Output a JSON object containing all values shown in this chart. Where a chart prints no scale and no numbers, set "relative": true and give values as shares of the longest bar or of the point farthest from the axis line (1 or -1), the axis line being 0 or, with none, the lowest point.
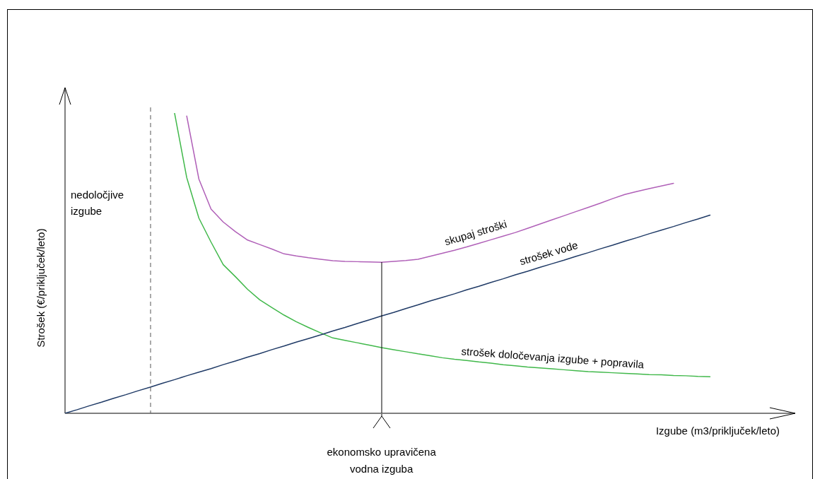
{
  "chart_data": {
    "type": "line",
    "relative": true,
    "xlabel": "Izgube (m3/priključek/leto)",
    "ylabel": "Strošek (€/priključek/leto)",
    "legend": false,
    "marker": "none",
    "line_style": "solid",
    "categories": [
      null,
      null,
      null,
      null,
      null,
      null,
      null,
      null,
      null,
      null,
      null,
      null,
      null,
      null,
      null,
      null,
      null,
      null,
      null,
      null,
      null,
      null,
      null,
      null,
      null,
      null,
      null,
      null,
      null,
      null,
      null,
      null,
      null,
      null,
      null,
      null,
      null,
      null,
      null,
      null,
      null,
      null,
      null,
      null,
      null,
      null,
      null,
      null,
      null,
      null,
      null,
      null,
      null,
      null,
      null,
      null,
      null,
      null,
      null,
      null,
      null
    ],
    "series": [
      {
        "name": "skupaj stroški",
        "color": "#b060b8",
        "values": [
          null,
          null,
          null,
          null,
          null,
          null,
          null,
          null,
          null,
          null,
          0.99,
          0.78,
          0.68,
          0.637,
          0.605,
          0.577,
          0.562,
          0.547,
          0.531,
          0.524,
          0.518,
          0.513,
          0.508,
          0.506,
          0.505,
          0.504,
          0.503,
          0.506,
          0.509,
          0.513,
          0.523,
          0.533,
          0.543,
          0.554,
          0.566,
          0.578,
          0.59,
          0.602,
          0.616,
          0.63,
          0.644,
          0.658,
          0.672,
          0.686,
          0.7,
          0.715,
          0.729,
          0.739,
          0.748,
          0.757,
          0.766,
          null,
          null,
          null,
          null,
          null,
          null,
          null,
          null,
          null,
          null
        ]
      },
      {
        "name": "strošek vode",
        "color": "#1f3a66",
        "values": [
          0,
          0.012,
          0.025,
          0.037,
          0.05,
          0.062,
          0.075,
          0.087,
          0.1,
          0.112,
          0.125,
          0.137,
          0.149,
          0.162,
          0.174,
          0.187,
          0.199,
          0.212,
          0.224,
          0.237,
          0.249,
          0.261,
          0.274,
          0.286,
          0.299,
          0.311,
          0.324,
          0.336,
          0.349,
          0.361,
          0.374,
          0.386,
          0.398,
          0.411,
          0.423,
          0.436,
          0.448,
          0.461,
          0.473,
          0.486,
          0.498,
          0.51,
          0.523,
          0.535,
          0.548,
          0.56,
          0.573,
          0.585,
          0.598,
          0.61,
          0.622,
          0.635,
          0.647,
          0.66,
          null,
          null,
          null,
          null,
          null,
          null,
          null
        ]
      },
      {
        "name": "strošek določevanja izgube + popravila",
        "color": "#40b84a",
        "values": [
          null,
          null,
          null,
          null,
          null,
          null,
          null,
          null,
          null,
          1.0,
          0.785,
          0.65,
          0.57,
          0.495,
          0.455,
          0.413,
          0.378,
          0.352,
          0.327,
          0.305,
          0.286,
          0.268,
          0.251,
          0.243,
          0.235,
          0.227,
          0.219,
          0.212,
          0.205,
          0.198,
          0.192,
          0.185,
          0.18,
          0.176,
          0.171,
          0.167,
          0.162,
          0.158,
          0.154,
          0.151,
          0.148,
          0.145,
          0.142,
          0.139,
          0.137,
          0.135,
          0.133,
          0.131,
          0.129,
          0.128,
          0.126,
          0.125,
          0.123,
          0.122,
          null,
          null,
          null,
          null,
          null,
          null,
          null
        ]
      }
    ],
    "annotations": [
      "nedoločjive izgube",
      "ekonomsko upravičena vodna izguba"
    ]
  }
}
